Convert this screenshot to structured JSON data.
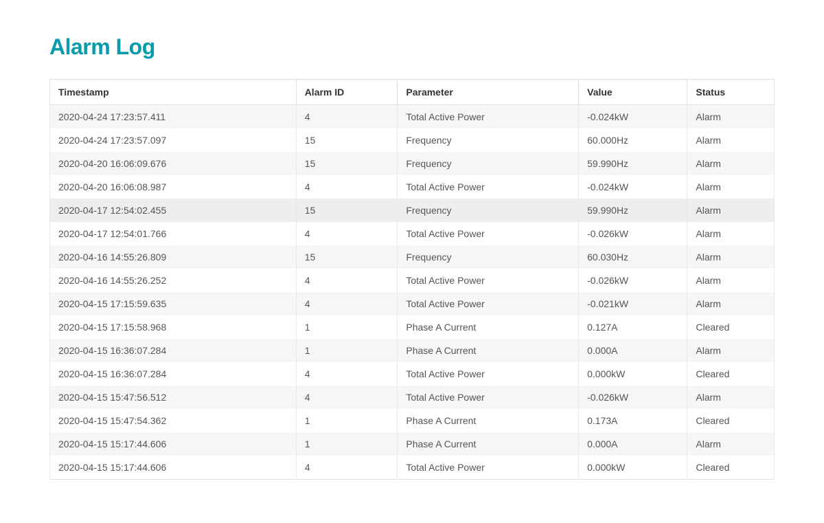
{
  "title": "Alarm Log",
  "table": {
    "columns": [
      {
        "key": "timestamp",
        "label": "Timestamp",
        "widthClass": "col-timestamp"
      },
      {
        "key": "alarmId",
        "label": "Alarm ID",
        "widthClass": "col-alarmid"
      },
      {
        "key": "parameter",
        "label": "Parameter",
        "widthClass": "col-parameter"
      },
      {
        "key": "value",
        "label": "Value",
        "widthClass": "col-value"
      },
      {
        "key": "status",
        "label": "Status",
        "widthClass": "col-status"
      }
    ],
    "rows": [
      {
        "timestamp": "2020-04-24 17:23:57.411",
        "alarmId": "4",
        "parameter": "Total Active Power",
        "value": "-0.024kW",
        "status": "Alarm",
        "hover": false
      },
      {
        "timestamp": "2020-04-24 17:23:57.097",
        "alarmId": "15",
        "parameter": "Frequency",
        "value": "60.000Hz",
        "status": "Alarm",
        "hover": false
      },
      {
        "timestamp": "2020-04-20 16:06:09.676",
        "alarmId": "15",
        "parameter": "Frequency",
        "value": "59.990Hz",
        "status": "Alarm",
        "hover": false
      },
      {
        "timestamp": "2020-04-20 16:06:08.987",
        "alarmId": "4",
        "parameter": "Total Active Power",
        "value": "-0.024kW",
        "status": "Alarm",
        "hover": false
      },
      {
        "timestamp": "2020-04-17 12:54:02.455",
        "alarmId": "15",
        "parameter": "Frequency",
        "value": "59.990Hz",
        "status": "Alarm",
        "hover": true
      },
      {
        "timestamp": "2020-04-17 12:54:01.766",
        "alarmId": "4",
        "parameter": "Total Active Power",
        "value": "-0.026kW",
        "status": "Alarm",
        "hover": false
      },
      {
        "timestamp": "2020-04-16 14:55:26.809",
        "alarmId": "15",
        "parameter": "Frequency",
        "value": "60.030Hz",
        "status": "Alarm",
        "hover": false
      },
      {
        "timestamp": "2020-04-16 14:55:26.252",
        "alarmId": "4",
        "parameter": "Total Active Power",
        "value": "-0.026kW",
        "status": "Alarm",
        "hover": false
      },
      {
        "timestamp": "2020-04-15 17:15:59.635",
        "alarmId": "4",
        "parameter": "Total Active Power",
        "value": "-0.021kW",
        "status": "Alarm",
        "hover": false
      },
      {
        "timestamp": "2020-04-15 17:15:58.968",
        "alarmId": "1",
        "parameter": "Phase A Current",
        "value": "0.127A",
        "status": "Cleared",
        "hover": false
      },
      {
        "timestamp": "2020-04-15 16:36:07.284",
        "alarmId": "1",
        "parameter": "Phase A Current",
        "value": "0.000A",
        "status": "Alarm",
        "hover": false
      },
      {
        "timestamp": "2020-04-15 16:36:07.284",
        "alarmId": "4",
        "parameter": "Total Active Power",
        "value": "0.000kW",
        "status": "Cleared",
        "hover": false
      },
      {
        "timestamp": "2020-04-15 15:47:56.512",
        "alarmId": "4",
        "parameter": "Total Active Power",
        "value": "-0.026kW",
        "status": "Alarm",
        "hover": false
      },
      {
        "timestamp": "2020-04-15 15:47:54.362",
        "alarmId": "1",
        "parameter": "Phase A Current",
        "value": "0.173A",
        "status": "Cleared",
        "hover": false
      },
      {
        "timestamp": "2020-04-15 15:17:44.606",
        "alarmId": "1",
        "parameter": "Phase A Current",
        "value": "0.000A",
        "status": "Alarm",
        "hover": false
      },
      {
        "timestamp": "2020-04-15 15:17:44.606",
        "alarmId": "4",
        "parameter": "Total Active Power",
        "value": "0.000kW",
        "status": "Cleared",
        "hover": false
      }
    ]
  },
  "colors": {
    "title": "#089bab",
    "headerText": "#333333",
    "cellText": "#555555",
    "border": "#e0e0e0",
    "rowOdd": "#f6f6f6",
    "rowEven": "#ffffff",
    "rowHover": "#eeeeee"
  }
}
